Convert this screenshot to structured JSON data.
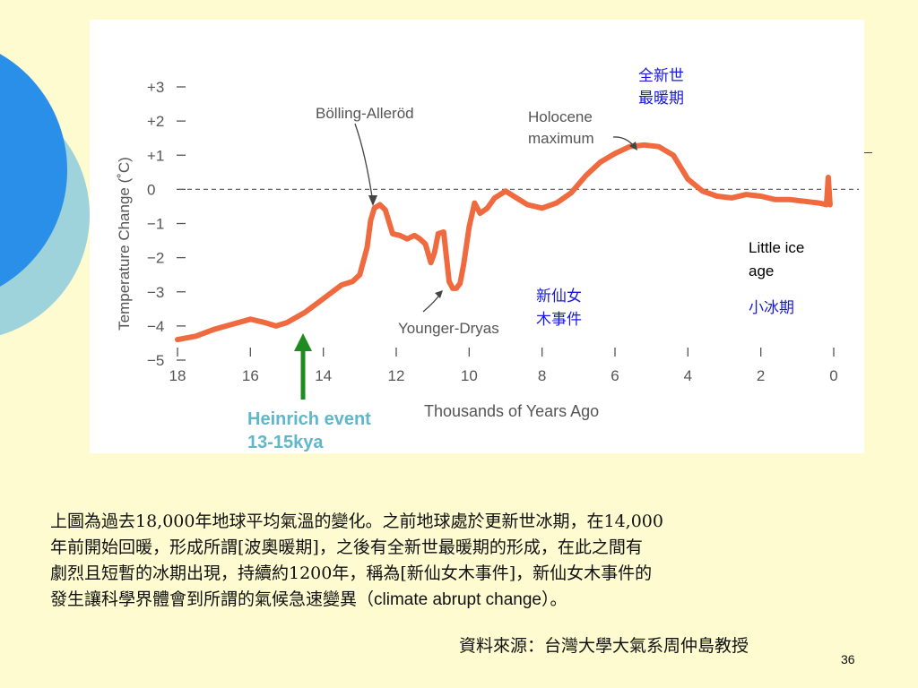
{
  "colors": {
    "background": "#fdfbcf",
    "curve": "#ef6a3e",
    "arrow_green": "#1f8a1f",
    "label_blue": "#1a1adf",
    "heinrich_cyan": "#5fb7c9",
    "circle_blue": "#2a8fe8",
    "circle_teal": "#9fd3dc"
  },
  "chart_data": {
    "type": "line",
    "title": "",
    "xlabel": "Thousands of Years Ago",
    "ylabel": "Temperature Change (˚C)",
    "xlim": [
      18,
      0
    ],
    "ylim": [
      -5,
      3
    ],
    "x_ticks": [
      "18",
      "16",
      "14",
      "12",
      "10",
      "8",
      "6",
      "4",
      "2",
      "0"
    ],
    "y_ticks": [
      "+3",
      "+2",
      "+1",
      "0",
      "−1",
      "−2",
      "−3",
      "−4",
      "−5"
    ],
    "reference_line": 0,
    "series": [
      {
        "x": [
          18,
          17.5,
          17,
          16.5,
          16,
          15.6,
          15.3,
          15,
          14.5,
          14,
          13.5,
          13.2,
          13,
          12.8,
          12.7,
          12.6,
          12.45,
          12.3,
          12.1,
          11.9,
          11.7,
          11.5,
          11.35,
          11.2,
          11.05,
          10.95,
          10.85,
          10.7,
          10.55,
          10.45,
          10.35,
          10.25,
          10.15,
          10.0,
          9.85,
          9.7,
          9.5,
          9.3,
          9.0,
          8.7,
          8.4,
          8.0,
          7.6,
          7.2,
          6.8,
          6.4,
          6.0,
          5.6,
          5.2,
          4.8,
          4.4,
          4.0,
          3.6,
          3.2,
          2.8,
          2.4,
          2.0,
          1.6,
          1.2,
          0.8,
          0.4,
          0.2,
          0.15,
          0.1
        ],
        "y": [
          -4.4,
          -4.3,
          -4.1,
          -3.95,
          -3.8,
          -3.9,
          -4.0,
          -3.9,
          -3.6,
          -3.2,
          -2.8,
          -2.7,
          -2.5,
          -1.7,
          -0.9,
          -0.55,
          -0.45,
          -0.6,
          -1.3,
          -1.35,
          -1.45,
          -1.35,
          -1.45,
          -1.6,
          -2.15,
          -1.85,
          -1.3,
          -1.25,
          -2.7,
          -2.9,
          -2.9,
          -2.75,
          -2.2,
          -1.1,
          -0.4,
          -0.7,
          -0.55,
          -0.25,
          -0.05,
          -0.25,
          -0.45,
          -0.55,
          -0.4,
          -0.1,
          0.4,
          0.8,
          1.05,
          1.25,
          1.3,
          1.25,
          1.0,
          0.3,
          -0.05,
          -0.2,
          -0.25,
          -0.15,
          -0.2,
          -0.3,
          -0.3,
          -0.35,
          -0.4,
          -0.45,
          0.35,
          -0.45
        ]
      }
    ],
    "annotations": [
      {
        "text": "Bölling-Alleröd",
        "x": 13.1,
        "y": -0.4
      },
      {
        "text": "Younger-Dryas",
        "x": 10.6,
        "y": -2.9
      },
      {
        "text_lines": [
          "Holocene",
          "maximum"
        ],
        "x": 5.6,
        "y": 1.3
      },
      {
        "text_lines": [
          "全新世",
          "最暖期"
        ],
        "x": 5.0,
        "y": 2.6
      },
      {
        "text_lines": [
          "Little ice",
          "age"
        ],
        "x": 2.2,
        "y": -1.5
      },
      {
        "text": "小冰期",
        "x": 2.2,
        "y": -3.4
      },
      {
        "text_lines": [
          "新仙女",
          "木事件"
        ],
        "x": 8.0,
        "y": -3.3
      },
      {
        "text_lines": [
          "Heinrich event",
          "13-15kya"
        ],
        "x": 14.4,
        "y": -5.5
      }
    ]
  },
  "caption": {
    "line1": "上圖為過去18,000年地球平均氣溫的變化。之前地球處於更新世冰期，在14,000",
    "line2": "年前開始回暖，形成所謂[波奧暖期]，之後有全新世最暖期的形成，在此之間有",
    "line3": "劇烈且短暫的冰期出現，持續約1200年，稱為[新仙女木事件]，新仙女木事件的",
    "line4_a": "發生讓科學界體會到所謂的氣候急速變異（",
    "line4_en": "climate abrupt change",
    "line4_b": "）。"
  },
  "source": "資料來源：台灣大學大氣系周仲島教授",
  "page_number": "36"
}
